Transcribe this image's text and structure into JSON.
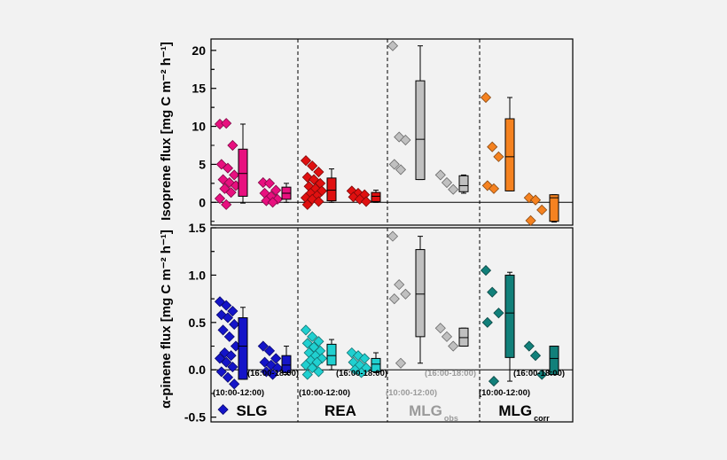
{
  "chart_data": [
    {
      "type": "box",
      "ylabel": "Isoprene flux [mg C m⁻² h⁻¹]",
      "ylim": [
        -3,
        21.5
      ],
      "yticks": [
        0,
        5,
        10,
        15,
        20
      ],
      "groups": [
        {
          "name": "SLG",
          "color": "#e8107f",
          "win1": {
            "points": [
              10.3,
              10.4,
              7.5,
              5.0,
              4.5,
              3.6,
              3.0,
              2.6,
              2.2,
              1.8,
              1.3,
              0.5,
              -0.3
            ],
            "box": {
              "whislo": -0.1,
              "q1": 0.8,
              "med": 3.8,
              "q3": 7.0,
              "whishi": 10.3
            }
          },
          "win2": {
            "points": [
              2.6,
              2.5,
              1.6,
              1.2,
              0.8,
              0.4,
              0.2,
              0.0
            ],
            "box": {
              "whislo": 0.0,
              "q1": 0.4,
              "med": 1.2,
              "q3": 2.0,
              "whishi": 2.5
            }
          }
        },
        {
          "name": "REA",
          "color": "#e01010",
          "win1": {
            "points": [
              5.5,
              4.8,
              4.0,
              3.3,
              3.0,
              2.5,
              2.1,
              1.8,
              1.5,
              1.2,
              0.9,
              0.6,
              0.4,
              0.1,
              -0.3
            ],
            "box": {
              "whislo": 0.0,
              "q1": 0.2,
              "med": 1.6,
              "q3": 3.2,
              "whishi": 4.4
            }
          },
          "win2": {
            "points": [
              1.5,
              1.2,
              1.0,
              0.7,
              0.4,
              0.1
            ],
            "box": {
              "whislo": 0.0,
              "q1": 0.1,
              "med": 0.8,
              "q3": 1.3,
              "whishi": 1.6
            }
          }
        },
        {
          "name": "MLG",
          "subscript": "obs",
          "color": "#c0c0c0",
          "labelColor": "#9a9a9a",
          "win1": {
            "points": [
              20.6,
              8.6,
              8.2,
              5.0,
              4.3
            ],
            "box": {
              "whislo": 3.0,
              "q1": 3.0,
              "med": 8.3,
              "q3": 16.0,
              "whishi": 20.6
            }
          },
          "win2": {
            "points": [
              3.6,
              2.6,
              1.7
            ],
            "box": {
              "whislo": 1.2,
              "q1": 1.4,
              "med": 2.2,
              "q3": 3.5,
              "whishi": 3.6
            }
          }
        },
        {
          "name": "MLG",
          "subscript": "corr",
          "color": "#f58220",
          "win1": {
            "points": [
              13.8,
              7.3,
              6.0,
              2.2,
              1.8
            ],
            "box": {
              "whislo": 1.5,
              "q1": 1.5,
              "med": 6.0,
              "q3": 11.0,
              "whishi": 13.8
            }
          },
          "win2": {
            "points": [
              0.6,
              0.3,
              -1.0,
              -2.4
            ],
            "box": {
              "whislo": -2.6,
              "q1": -2.5,
              "med": 0.6,
              "q3": 1.0,
              "whishi": 1.0
            }
          }
        }
      ]
    },
    {
      "type": "box",
      "ylabel": "α-pinene flux [mg C m⁻² h⁻¹]",
      "ylim": [
        -0.55,
        1.5
      ],
      "yticks": [
        -0.5,
        0.0,
        0.5,
        1.0,
        1.5
      ],
      "window_labels": [
        "(10:00-12:00)",
        "(16:00-18:00)"
      ],
      "groups": [
        {
          "name": "SLG",
          "color": "#1414c8",
          "win1": {
            "points": [
              0.72,
              0.68,
              0.62,
              0.58,
              0.55,
              0.48,
              0.42,
              0.35,
              0.25,
              0.18,
              0.15,
              0.12,
              0.08,
              0.03,
              -0.02,
              -0.08,
              -0.15,
              -0.42
            ],
            "box": {
              "whislo": -0.1,
              "q1": -0.1,
              "med": 0.25,
              "q3": 0.55,
              "whishi": 0.66
            }
          },
          "win2": {
            "points": [
              0.25,
              0.2,
              0.12,
              0.08,
              0.05,
              0.02,
              -0.02,
              -0.05
            ],
            "box": {
              "whislo": -0.05,
              "q1": -0.03,
              "med": 0.05,
              "q3": 0.15,
              "whishi": 0.25
            }
          }
        },
        {
          "name": "REA",
          "color": "#20d0d0",
          "win1": {
            "points": [
              0.42,
              0.35,
              0.3,
              0.28,
              0.24,
              0.2,
              0.18,
              0.15,
              0.12,
              0.1,
              0.08,
              0.05,
              0.02,
              -0.02,
              -0.05
            ],
            "box": {
              "whislo": 0.0,
              "q1": 0.05,
              "med": 0.15,
              "q3": 0.27,
              "whishi": 0.32
            }
          },
          "win2": {
            "points": [
              0.18,
              0.15,
              0.12,
              0.08,
              0.05,
              0.02,
              0.0,
              -0.03
            ],
            "box": {
              "whislo": -0.03,
              "q1": -0.02,
              "med": 0.06,
              "q3": 0.12,
              "whishi": 0.18
            }
          }
        },
        {
          "name": "MLG",
          "subscript": "obs",
          "color": "#c0c0c0",
          "labelColor": "#9a9a9a",
          "win1": {
            "points": [
              1.41,
              0.9,
              0.8,
              0.75,
              0.07
            ],
            "box": {
              "whislo": 0.07,
              "q1": 0.35,
              "med": 0.8,
              "q3": 1.27,
              "whishi": 1.41
            }
          },
          "win2": {
            "points": [
              0.44,
              0.35,
              0.25
            ],
            "box": {
              "whislo": 0.25,
              "q1": 0.25,
              "med": 0.34,
              "q3": 0.44,
              "whishi": 0.44
            }
          }
        },
        {
          "name": "MLG",
          "subscript": "corr",
          "color": "#12807a",
          "win1": {
            "points": [
              1.05,
              0.82,
              0.6,
              0.5,
              -0.12
            ],
            "box": {
              "whislo": -0.12,
              "q1": 0.13,
              "med": 0.6,
              "q3": 1.0,
              "whishi": 1.03
            }
          },
          "win2": {
            "points": [
              0.25,
              0.15,
              -0.05
            ],
            "box": {
              "whislo": -0.05,
              "q1": -0.05,
              "med": 0.12,
              "q3": 0.25,
              "whishi": 0.25
            }
          }
        }
      ]
    }
  ]
}
